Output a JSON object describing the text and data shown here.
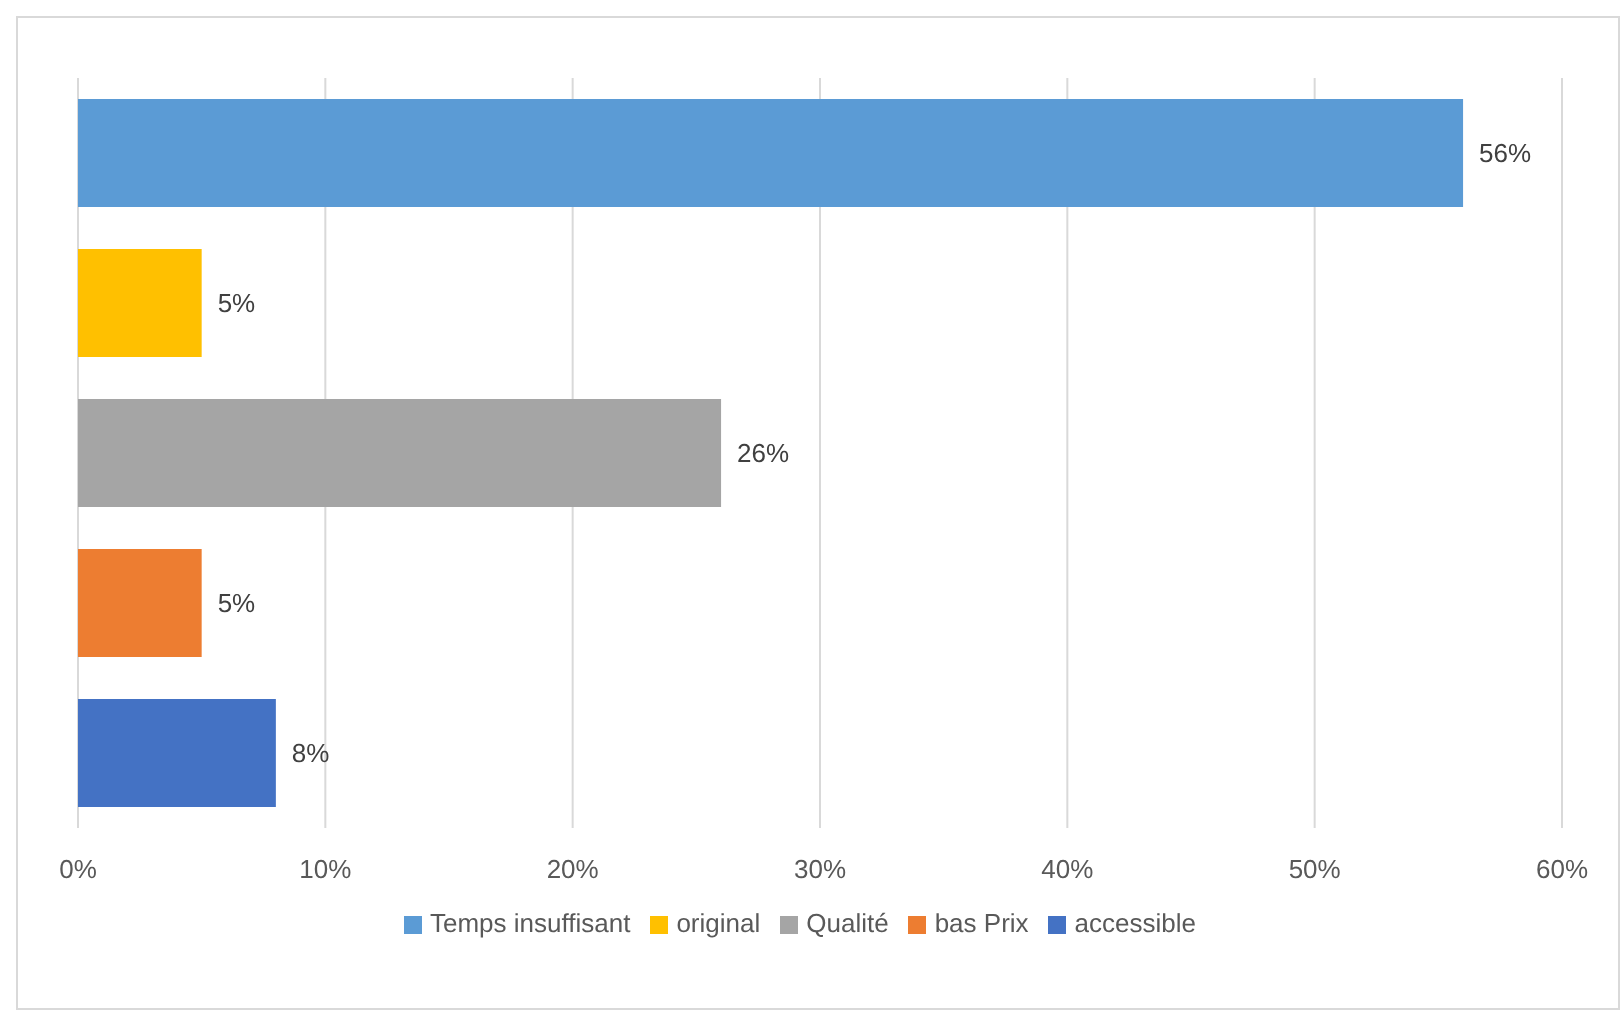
{
  "chart_data": {
    "type": "bar",
    "orientation": "horizontal",
    "stacked": true,
    "categories": [
      null,
      null,
      null,
      null,
      null
    ],
    "series": [
      {
        "name": "Temps insuffisant",
        "color": "#5b9bd5",
        "values": [
          56,
          null,
          null,
          null,
          null
        ],
        "value_labels": [
          "56%",
          null,
          null,
          null,
          null
        ]
      },
      {
        "name": "original",
        "color": "#ffc000",
        "values": [
          null,
          5,
          null,
          null,
          null
        ],
        "value_labels": [
          null,
          "5%",
          null,
          null,
          null
        ]
      },
      {
        "name": "Qualité",
        "color": "#a5a5a5",
        "values": [
          null,
          null,
          26,
          null,
          null
        ],
        "value_labels": [
          null,
          null,
          "26%",
          null,
          null
        ]
      },
      {
        "name": "bas Prix",
        "color": "#ed7d31",
        "values": [
          null,
          null,
          null,
          5,
          null
        ],
        "value_labels": [
          null,
          null,
          null,
          "5%",
          null
        ]
      },
      {
        "name": "accessible",
        "color": "#4472c4",
        "values": [
          null,
          null,
          null,
          null,
          8
        ],
        "value_labels": [
          null,
          null,
          null,
          null,
          "8%"
        ]
      }
    ],
    "xlim": [
      0,
      60
    ],
    "xticks": [
      {
        "value": 0,
        "label": "0%"
      },
      {
        "value": 10,
        "label": "10%"
      },
      {
        "value": 20,
        "label": "20%"
      },
      {
        "value": 30,
        "label": "30%"
      },
      {
        "value": 40,
        "label": "40%"
      },
      {
        "value": 50,
        "label": "50%"
      },
      {
        "value": 60,
        "label": "60%"
      }
    ],
    "grid": "x",
    "legend": "bottom"
  }
}
